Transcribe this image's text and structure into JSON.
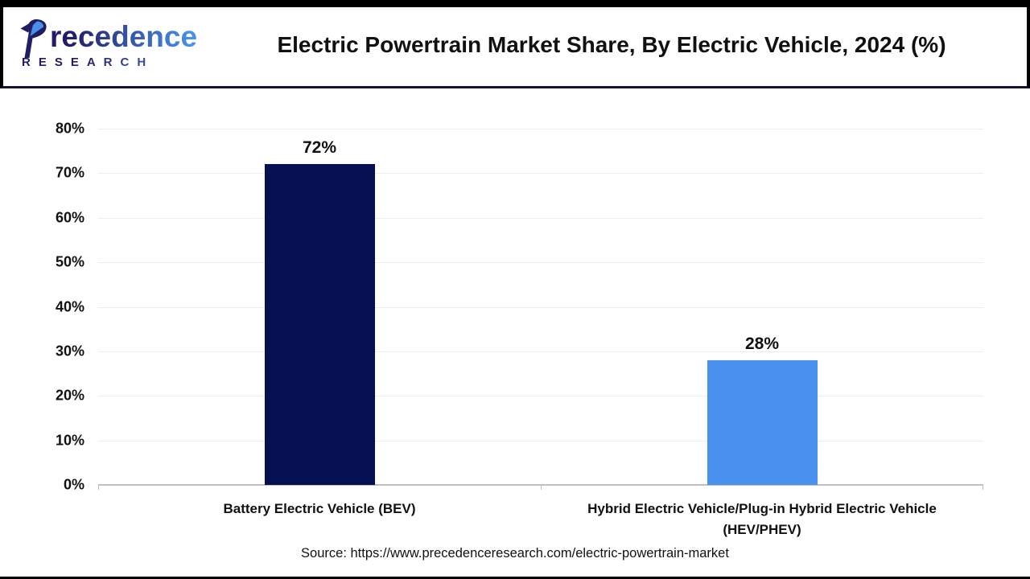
{
  "header": {
    "logo": {
      "wordmark": "Precedence",
      "sub": "RESEARCH"
    },
    "title": "Electric Powertrain Market Share, By Electric Vehicle, 2024 (%)"
  },
  "chart_data": {
    "type": "bar",
    "title": "Electric Powertrain Market Share, By Electric Vehicle, 2024 (%)",
    "categories": [
      "Battery Electric Vehicle (BEV)",
      "Hybrid Electric Vehicle/Plug-in Hybrid Electric Vehicle (HEV/PHEV)"
    ],
    "category_lines": [
      [
        "Battery Electric Vehicle (BEV)"
      ],
      [
        "Hybrid Electric Vehicle/Plug-in Hybrid Electric Vehicle",
        "(HEV/PHEV)"
      ]
    ],
    "values": [
      72,
      28
    ],
    "value_labels": [
      "72%",
      "28%"
    ],
    "bar_colors": [
      "#041050",
      "#4991ef"
    ],
    "ylim": [
      0,
      80
    ],
    "yticks": [
      {
        "value": 80,
        "label": "80%"
      },
      {
        "value": 70,
        "label": "70%"
      },
      {
        "value": 60,
        "label": "60%"
      },
      {
        "value": 50,
        "label": "50%"
      },
      {
        "value": 40,
        "label": "40%"
      },
      {
        "value": 30,
        "label": "30%"
      },
      {
        "value": 20,
        "label": "20%"
      },
      {
        "value": 10,
        "label": "10%"
      },
      {
        "value": 0,
        "label": "0%"
      }
    ],
    "grid": true,
    "legend": "none"
  },
  "footer": {
    "source": "Source: https://www.precedenceresearch.com/electric-powertrain-market"
  },
  "colors": {
    "gridline": "#ededed",
    "axis": "#bfbfbf",
    "header_rule": "#12123b",
    "frame": "#000000",
    "logo_dark": "#221d66",
    "logo_blue": "#4a8fe8"
  }
}
